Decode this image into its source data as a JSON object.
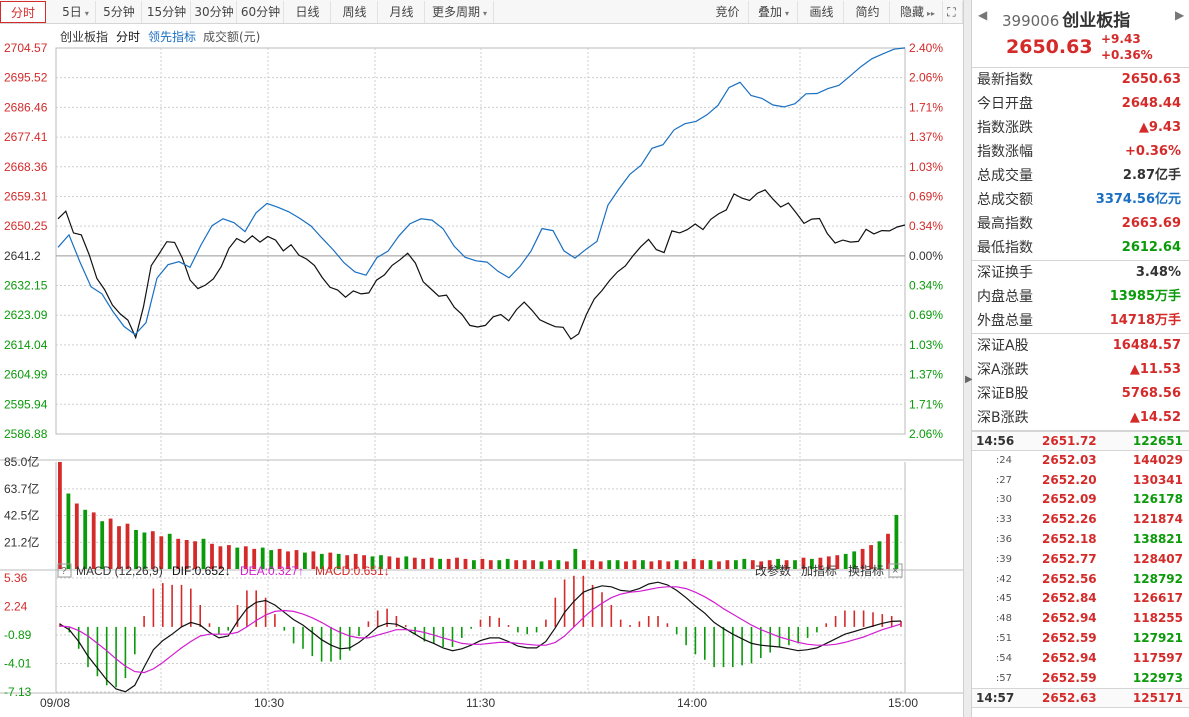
{
  "toolbar": {
    "left": [
      "分时",
      "5日",
      "5分钟",
      "15分钟",
      "30分钟",
      "60分钟",
      "日线",
      "周线",
      "月线",
      "更多周期"
    ],
    "right": [
      "竞价",
      "叠加",
      "画线",
      "简约",
      "隐藏"
    ],
    "dropdowns": [
      1,
      9,
      11
    ]
  },
  "indicator_bar": {
    "name": "创业板指",
    "mode": "分时",
    "lead": "领先指标",
    "volume": "成交额(元)"
  },
  "macd_bar": {
    "title": "MACD (12,26,9)",
    "dif": "DIF:0.652↓",
    "dea": "DEA:0.327↑",
    "macd": "MACD:0.651↓",
    "buttons": [
      "改参数",
      "加指标",
      "换指标"
    ]
  },
  "colors": {
    "red": "#d42a2a",
    "green": "#0a9a0a",
    "blue": "#1a6fc2",
    "black": "#111111",
    "magenta": "#d21ed2",
    "grid": "#cfcfcf"
  },
  "chart_data": [
    {
      "type": "line",
      "title": "创业板指 分时",
      "prev_close": 2641.2,
      "y_ticks": [
        2704.57,
        2695.52,
        2686.46,
        2677.41,
        2668.36,
        2659.31,
        2650.25,
        2641.2,
        2632.15,
        2623.09,
        2614.04,
        2604.99,
        2595.94,
        2586.88
      ],
      "pct_ticks": [
        "2.40%",
        "2.06%",
        "1.71%",
        "1.37%",
        "1.03%",
        "0.69%",
        "0.34%",
        "0.00%",
        "0.34%",
        "0.69%",
        "1.03%",
        "1.37%",
        "1.71%",
        "2.06%"
      ],
      "ylim": [
        2586.88,
        2704.57
      ],
      "x_ticks": [
        "09/08",
        "10:30",
        "11:30",
        "14:00",
        "15:00"
      ],
      "series": [
        {
          "name": "创业板指",
          "color": "#111111",
          "values": [
            2652.5,
            2654.8,
            2648.2,
            2647.6,
            2641.6,
            2634.3,
            2630.9,
            2626.2,
            2623.5,
            2621.6,
            2616.3,
            2625.7,
            2638.2,
            2641.8,
            2645.5,
            2645.3,
            2640.5,
            2633.8,
            2631.2,
            2632.3,
            2634.2,
            2637.9,
            2643.5,
            2646.5,
            2645.2,
            2647.3,
            2645.4,
            2647.1,
            2646.0,
            2642.7,
            2644.6,
            2641.4,
            2640.2,
            2638.3,
            2634.6,
            2631.6,
            2630.8,
            2628.6,
            2630.5,
            2629.6,
            2629.9,
            2633.8,
            2635.4,
            2638.3,
            2640.0,
            2642.0,
            2639.0,
            2633.3,
            2631.1,
            2628.9,
            2629.2,
            2625.5,
            2623.3,
            2620.0,
            2619.5,
            2620.0,
            2622.6,
            2623.3,
            2621.4,
            2624.8,
            2627.1,
            2624.6,
            2621.7,
            2620.6,
            2619.6,
            2619.4,
            2615.8,
            2617.4,
            2623.3,
            2628.0,
            2630.6,
            2633.7,
            2636.3,
            2638.1,
            2641.2,
            2644.0,
            2646.2,
            2643.1,
            2642.2,
            2648.8,
            2648.2,
            2649.2,
            2650.9,
            2649.2,
            2652.3,
            2654.0,
            2655.2,
            2660.1,
            2658.8,
            2658.1,
            2660.3,
            2661.3,
            2658.5,
            2656.1,
            2657.3,
            2654.3,
            2651.1,
            2652.4,
            2652.6,
            2648.0,
            2645.1,
            2646.0,
            2645.4,
            2645.6,
            2649.3,
            2647.9,
            2648.9,
            2648.8,
            2650.0,
            2650.6
          ]
        },
        {
          "name": "领先指标",
          "color": "#1a6fc2",
          "values": [
            2643.8,
            2647.6,
            2639.3,
            2631.8,
            2629.6,
            2624.2,
            2619.7,
            2617.2,
            2620.8,
            2634.4,
            2638.5,
            2639.4,
            2637.7,
            2644.5,
            2650.4,
            2652.5,
            2651.3,
            2648.6,
            2654.3,
            2657.2,
            2656.0,
            2654.6,
            2652.6,
            2650.3,
            2646.6,
            2643.1,
            2639.1,
            2636.3,
            2635.3,
            2640.7,
            2642.6,
            2647.3,
            2651.0,
            2652.5,
            2652.1,
            2649.5,
            2644.2,
            2640.8,
            2639.7,
            2639.3,
            2636.5,
            2634.5,
            2638.0,
            2642.6,
            2649.5,
            2648.9,
            2642.7,
            2640.5,
            2643.2,
            2645.6,
            2656.7,
            2661.6,
            2666.1,
            2668.8,
            2674.0,
            2675.1,
            2679.6,
            2681.5,
            2682.2,
            2684.2,
            2687.1,
            2692.5,
            2694.1,
            2690.1,
            2689.2,
            2687.2,
            2686.6,
            2687.6,
            2690.6,
            2690.7,
            2692.2,
            2693.2,
            2696.0,
            2698.9,
            2701.3,
            2702.8,
            2704.2,
            2704.6
          ]
        }
      ]
    },
    {
      "type": "bar",
      "title": "成交额(元)",
      "y_ticks": [
        "85.0亿",
        "63.7亿",
        "42.5亿",
        "21.2亿"
      ],
      "ylim": [
        0,
        85.0
      ],
      "unit": "亿",
      "values": [
        85.0,
        60.0,
        52.0,
        47.0,
        45.0,
        38.0,
        40.0,
        34.0,
        36.0,
        31.0,
        29.0,
        30.0,
        26.0,
        28.0,
        24.0,
        23.0,
        22.0,
        24.0,
        20.0,
        18.0,
        19.0,
        17.0,
        18.0,
        16.0,
        17.0,
        15.0,
        16.0,
        14.0,
        15.0,
        13.0,
        14.0,
        12.0,
        13.0,
        12.0,
        11.0,
        12.0,
        11.0,
        10.0,
        11.0,
        10.0,
        9.0,
        10.0,
        9.0,
        8.0,
        9.0,
        8.0,
        8.0,
        9.0,
        8.0,
        7.0,
        8.0,
        7.0,
        7.0,
        8.0,
        7.0,
        7.0,
        7.0,
        6.0,
        7.0,
        7.0,
        6.0,
        16.0,
        7.0,
        7.0,
        6.0,
        7.0,
        7.0,
        6.0,
        7.0,
        7.0,
        6.0,
        7.0,
        6.0,
        7.0,
        6.0,
        8.0,
        7.0,
        7.0,
        6.0,
        7.0,
        7.0,
        8.0,
        7.0,
        6.0,
        7.0,
        8.0,
        7.0,
        7.0,
        9.0,
        8.0,
        9.0,
        10.0,
        11.0,
        12.0,
        14.0,
        16.0,
        19.0,
        22.0,
        28.0,
        43.0
      ]
    },
    {
      "type": "line",
      "title": "MACD (12,26,9)",
      "y_ticks": [
        5.36,
        2.24,
        -0.89,
        -4.01,
        -7.13
      ],
      "ylim": [
        -7.13,
        5.36
      ],
      "series": [
        {
          "name": "DIF",
          "color": "#111111",
          "values": [
            0.3,
            -0.3,
            -1.6,
            -3.2,
            -4.5,
            -5.8,
            -6.8,
            -7.1,
            -6.4,
            -4.4,
            -2.5,
            -1.5,
            -0.8,
            0.0,
            0.5,
            0.2,
            -0.6,
            -1.2,
            -1.0,
            0.6,
            2.0,
            2.7,
            2.9,
            2.4,
            1.6,
            0.8,
            0.2,
            -0.6,
            -1.4,
            -2.0,
            -2.4,
            -2.3,
            -1.7,
            -0.9,
            0.0,
            0.4,
            0.3,
            -0.2,
            -0.8,
            -1.4,
            -1.8,
            -2.3,
            -2.6,
            -2.4,
            -2.0,
            -1.5,
            -1.2,
            -1.2,
            -1.6,
            -2.1,
            -2.3,
            -2.3,
            -1.6,
            -0.1,
            1.6,
            2.8,
            3.8,
            4.2,
            4.5,
            4.4,
            4.0,
            3.9,
            4.2,
            4.7,
            4.9,
            4.6,
            4.0,
            3.2,
            2.3,
            1.5,
            0.5,
            -0.2,
            -0.8,
            -1.3,
            -1.8,
            -2.0,
            -2.1,
            -2.2,
            -2.4,
            -2.6,
            -2.5,
            -2.3,
            -1.8,
            -1.3,
            -0.8,
            -0.5,
            -0.2,
            0.1,
            0.4,
            0.6,
            0.65
          ]
        },
        {
          "name": "DEA",
          "color": "#d21ed2",
          "values": [
            0.1,
            0.0,
            -0.4,
            -1.0,
            -1.8,
            -2.6,
            -3.5,
            -4.3,
            -4.9,
            -5.0,
            -4.6,
            -3.9,
            -3.1,
            -2.3,
            -1.6,
            -1.0,
            -0.8,
            -0.8,
            -0.8,
            -0.6,
            0.0,
            0.7,
            1.3,
            1.7,
            1.8,
            1.7,
            1.4,
            1.0,
            0.5,
            -0.1,
            -0.6,
            -1.0,
            -1.2,
            -1.2,
            -0.9,
            -0.6,
            -0.3,
            -0.3,
            -0.4,
            -0.6,
            -0.9,
            -1.2,
            -1.5,
            -1.8,
            -1.9,
            -1.9,
            -1.8,
            -1.7,
            -1.7,
            -1.8,
            -1.9,
            -2.0,
            -2.0,
            -1.7,
            -1.0,
            0.0,
            1.0,
            1.9,
            2.6,
            3.2,
            3.6,
            3.8,
            3.9,
            4.1,
            4.3,
            4.4,
            4.4,
            4.2,
            3.8,
            3.3,
            2.7,
            2.0,
            1.4,
            0.8,
            0.2,
            -0.3,
            -0.7,
            -1.1,
            -1.4,
            -1.7,
            -1.9,
            -2.0,
            -2.0,
            -1.9,
            -1.7,
            -1.4,
            -1.1,
            -0.7,
            -0.3,
            0.0,
            0.33
          ]
        },
        {
          "name": "MACD",
          "color": "#0a9a0a",
          "values": [
            0.4,
            -0.6,
            -2.4,
            -4.4,
            -5.4,
            -6.4,
            -6.6,
            -5.6,
            -3.0,
            1.2,
            4.2,
            4.8,
            4.6,
            4.6,
            4.2,
            2.4,
            0.4,
            -0.8,
            -0.4,
            2.4,
            4.0,
            4.0,
            3.2,
            1.4,
            -0.4,
            -1.8,
            -2.4,
            -3.2,
            -3.8,
            -3.8,
            -3.6,
            -2.6,
            -1.0,
            0.6,
            1.8,
            2.0,
            1.2,
            0.2,
            -0.8,
            -1.6,
            -1.8,
            -2.2,
            -2.2,
            -1.2,
            -0.2,
            0.8,
            1.2,
            1.0,
            0.2,
            -0.6,
            -0.8,
            -0.6,
            0.8,
            3.2,
            5.2,
            5.6,
            5.6,
            4.6,
            3.8,
            2.4,
            0.8,
            0.2,
            0.6,
            1.2,
            1.2,
            0.4,
            -0.8,
            -2.0,
            -3.0,
            -3.6,
            -4.4,
            -4.4,
            -4.4,
            -4.2,
            -4.0,
            -3.4,
            -2.8,
            -2.2,
            -2.0,
            -1.8,
            -1.2,
            -0.6,
            0.4,
            1.2,
            1.8,
            1.8,
            1.8,
            1.6,
            1.4,
            1.2,
            0.65
          ]
        }
      ]
    }
  ],
  "panel": {
    "code": "399006",
    "name": "创业板指",
    "price": "2650.63",
    "change": "+9.43",
    "change_pct": "+0.36%",
    "stats1": [
      {
        "label": "最新指数",
        "value": "2650.63",
        "color": "red"
      },
      {
        "label": "今日开盘",
        "value": "2648.44",
        "color": "red"
      },
      {
        "label": "指数涨跌",
        "value": "▲9.43",
        "color": "red"
      },
      {
        "label": "指数涨幅",
        "value": "+0.36%",
        "color": "red"
      },
      {
        "label": "总成交量",
        "value": "2.87亿手",
        "color": "dark"
      },
      {
        "label": "总成交额",
        "value": "3374.56亿元",
        "color": "blue"
      },
      {
        "label": "最高指数",
        "value": "2663.69",
        "color": "red"
      },
      {
        "label": "最低指数",
        "value": "2612.64",
        "color": "green"
      }
    ],
    "stats2": [
      {
        "label": "深证换手",
        "value": "3.48%",
        "color": "dark"
      },
      {
        "label": "内盘总量",
        "value": "13985万手",
        "color": "green"
      },
      {
        "label": "外盘总量",
        "value": "14718万手",
        "color": "red"
      }
    ],
    "stats3": [
      {
        "label": "深证A股",
        "value": "16484.57",
        "color": "red"
      },
      {
        "label": "深A涨跌",
        "value": "▲11.53",
        "color": "red"
      },
      {
        "label": "深证B股",
        "value": "5768.56",
        "color": "red"
      },
      {
        "label": "深B涨跌",
        "value": "▲14.52",
        "color": "red"
      }
    ],
    "ticks": [
      {
        "time": "14:56",
        "full": true,
        "price": "2651.72",
        "vol": "122651",
        "vcolor": "green"
      },
      {
        "time": ":24",
        "price": "2652.03",
        "vol": "144029",
        "vcolor": "red"
      },
      {
        "time": ":27",
        "price": "2652.20",
        "vol": "130341",
        "vcolor": "red"
      },
      {
        "time": ":30",
        "price": "2652.09",
        "vol": "126178",
        "vcolor": "green"
      },
      {
        "time": ":33",
        "price": "2652.26",
        "vol": "121874",
        "vcolor": "red"
      },
      {
        "time": ":36",
        "price": "2652.18",
        "vol": "138821",
        "vcolor": "green"
      },
      {
        "time": ":39",
        "price": "2652.77",
        "vol": "128407",
        "vcolor": "red"
      },
      {
        "time": ":42",
        "price": "2652.56",
        "vol": "128792",
        "vcolor": "green"
      },
      {
        "time": ":45",
        "price": "2652.84",
        "vol": "126617",
        "vcolor": "red"
      },
      {
        "time": ":48",
        "price": "2652.94",
        "vol": "118255",
        "vcolor": "red"
      },
      {
        "time": ":51",
        "price": "2652.59",
        "vol": "127921",
        "vcolor": "green"
      },
      {
        "time": ":54",
        "price": "2652.94",
        "vol": "117597",
        "vcolor": "red"
      },
      {
        "time": ":57",
        "price": "2652.59",
        "vol": "122973",
        "vcolor": "green"
      },
      {
        "time": "14:57",
        "full": true,
        "price": "2652.63",
        "vol": "125171",
        "vcolor": "red"
      }
    ]
  }
}
